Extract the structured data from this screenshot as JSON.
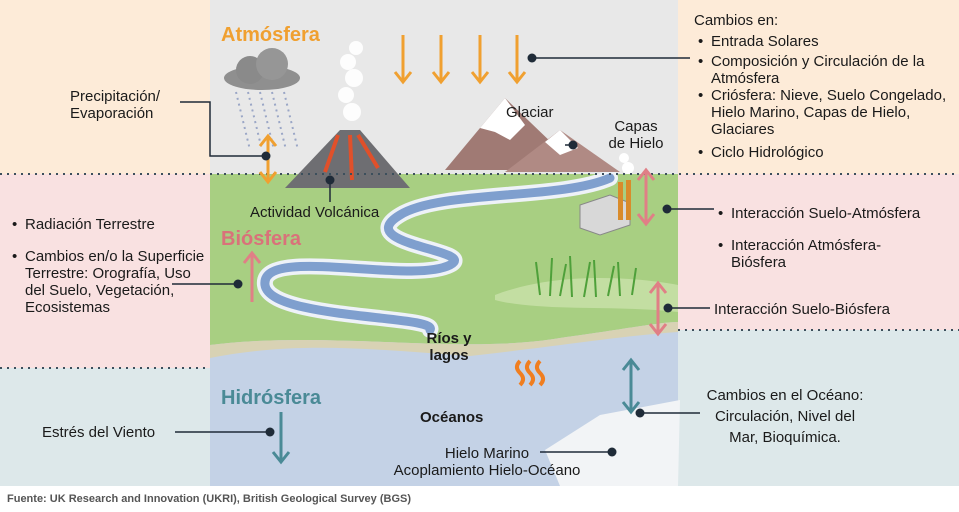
{
  "spheres": {
    "atmosphere": {
      "label": "Atmósfera",
      "color": "#f0a030"
    },
    "biosphere": {
      "label": "Biósfera",
      "color": "#d9727a"
    },
    "hydrosphere": {
      "label": "Hidrósfera",
      "color": "#4a8a96"
    }
  },
  "left": {
    "precip": [
      "Precipitación/",
      "Evaporación"
    ],
    "bio_items": [
      "Radiación Terrestre",
      "Cambios en/o  la Superficie Terrestre: Orografía, Uso del Suelo, Vegetación, Ecosistemas"
    ],
    "wind": "Estrés del Viento"
  },
  "right": {
    "changes_title": "Cambios en:",
    "changes_items": [
      "Entrada Solares",
      "Composición y Circulación de la Atmósfera",
      "Criósfera: Nieve, Suelo Congelado, Hielo Marino, Capas de Hielo, Glaciares",
      "Ciclo Hidrológico"
    ],
    "interactions": [
      "Interacción Suelo-Atmósfera",
      "Interacción Atmósfera-Biósfera"
    ],
    "land_bio": "Interacción Suelo-Biósfera",
    "ocean": [
      "Cambios en el Océano:",
      "Circulación, Nivel del",
      "Mar, Bioquímica."
    ]
  },
  "center": {
    "glacier": "Glaciar",
    "ice_sheets": [
      "Capas",
      "de Hielo"
    ],
    "volcanic": "Actividad Volcánica",
    "rivers": [
      "Ríos y",
      "lagos"
    ],
    "oceans": "Océanos",
    "sea_ice": [
      "Hielo Marino",
      "Acoplamiento Hielo-Océano"
    ]
  },
  "source": "Fuente: UK Research and Innovation (UKRI), British Geological Survey (BGS)",
  "colors": {
    "atmo_bg": "#fdebd8",
    "bio_bg": "#f9e1e1",
    "hydro_bg": "#dde8ea",
    "center_atmo": "#e8e8e8",
    "land": "#a4cc7e",
    "water": "#c3d1e6",
    "orange_arrow": "#f0a030",
    "pink_arrow": "#e07f86",
    "teal_arrow": "#4a8a96"
  }
}
